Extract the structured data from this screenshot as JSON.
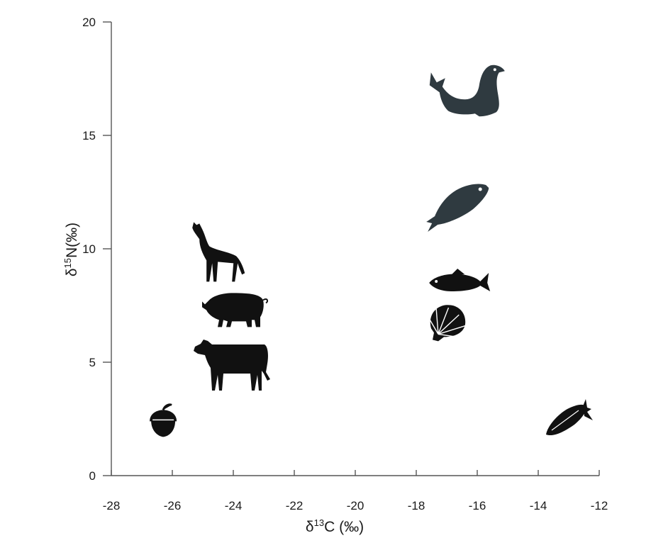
{
  "chart_data": {
    "type": "scatter",
    "xlabel": {
      "prefix": "δ",
      "sup": "13",
      "rest": "C (‰)"
    },
    "ylabel": {
      "prefix": "δ",
      "sup": "15",
      "rest": "N(‰)"
    },
    "xlim": [
      -28,
      -12
    ],
    "ylim": [
      0,
      20
    ],
    "xticks": [
      -28,
      -26,
      -24,
      -22,
      -20,
      -18,
      -16,
      -14,
      -12
    ],
    "yticks": [
      0,
      5,
      10,
      15,
      20
    ],
    "grid": false,
    "points": [
      {
        "icon": "acorn-icon",
        "x": -26.3,
        "y": 2.3
      },
      {
        "icon": "cow-icon",
        "x": -24.0,
        "y": 5.0
      },
      {
        "icon": "pig-icon",
        "x": -24.0,
        "y": 7.3
      },
      {
        "icon": "wolf-icon",
        "x": -24.6,
        "y": 9.8
      },
      {
        "icon": "shell-icon",
        "x": -17.0,
        "y": 6.8
      },
      {
        "icon": "fish-icon",
        "x": -16.6,
        "y": 8.5
      },
      {
        "icon": "salmon-icon",
        "x": -16.6,
        "y": 12.0
      },
      {
        "icon": "seal-icon",
        "x": -16.4,
        "y": 16.9
      },
      {
        "icon": "corn-icon",
        "x": -13.0,
        "y": 2.5
      }
    ]
  }
}
